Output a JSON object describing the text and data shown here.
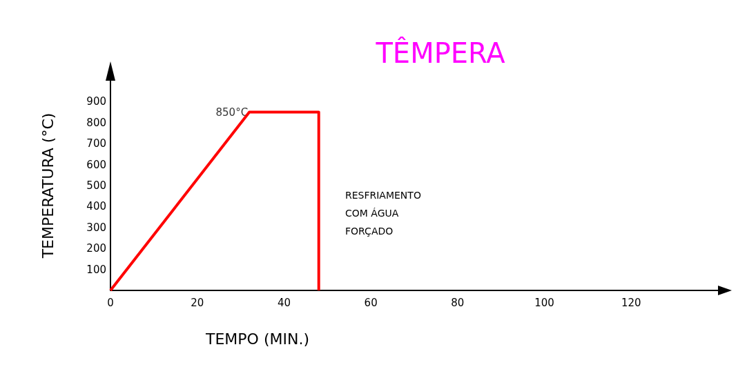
{
  "chart_data": {
    "type": "line",
    "title": "TÊMPERA",
    "xlabel": "TEMPO (MIN.)",
    "ylabel": "TEMPERATURA (°C)",
    "x": [
      0,
      32,
      48,
      48
    ],
    "series": [
      {
        "color": "#ff0000",
        "values": [
          0,
          850,
          850,
          0
        ]
      }
    ],
    "xlim": [
      0,
      140
    ],
    "xticks": [
      0,
      20,
      40,
      60,
      80,
      100,
      120
    ],
    "ylim": [
      0,
      1000
    ],
    "yticks": [
      100,
      200,
      300,
      400,
      500,
      600,
      700,
      800,
      900
    ],
    "grid": false,
    "marker": "none",
    "line_style": "solid",
    "annotations": [
      {
        "text": "850°C",
        "x": 32,
        "y": 850
      },
      "RESFRIAMENTO\nCOM ÁGUA\nFORÇADO"
    ]
  }
}
